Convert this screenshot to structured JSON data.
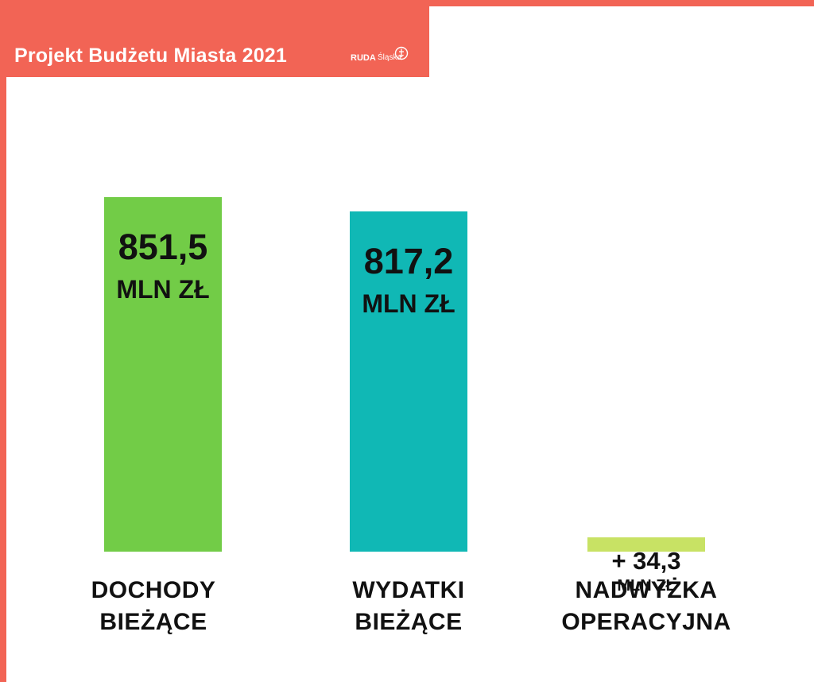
{
  "header": {
    "title": "Projekt Budżetu Miasta 2021",
    "logo_text_bold": "RUDA",
    "logo_text_light": "Śląska"
  },
  "chart_data": {
    "type": "bar",
    "title": "Projekt Budżetu Miasta 2021",
    "categories": [
      [
        "DOCHODY",
        "BIEŻĄCE"
      ],
      [
        "WYDATKI",
        "BIEŻĄCE"
      ],
      [
        "NADWYŻKA",
        "OPERACYJNA"
      ]
    ],
    "values": [
      851.5,
      817.2,
      34.3
    ],
    "value_labels": [
      "851,5",
      "817,2",
      "+ 34,3"
    ],
    "unit_label": "MLN ZŁ",
    "colors": [
      "#72CC47",
      "#10B8B5",
      "#C8E264"
    ],
    "ylim": [
      0,
      851.5
    ],
    "grid": false,
    "legend": "none"
  },
  "colors": {
    "frame": "#F26455",
    "background": "#FFFFFF",
    "text": "#111111"
  }
}
